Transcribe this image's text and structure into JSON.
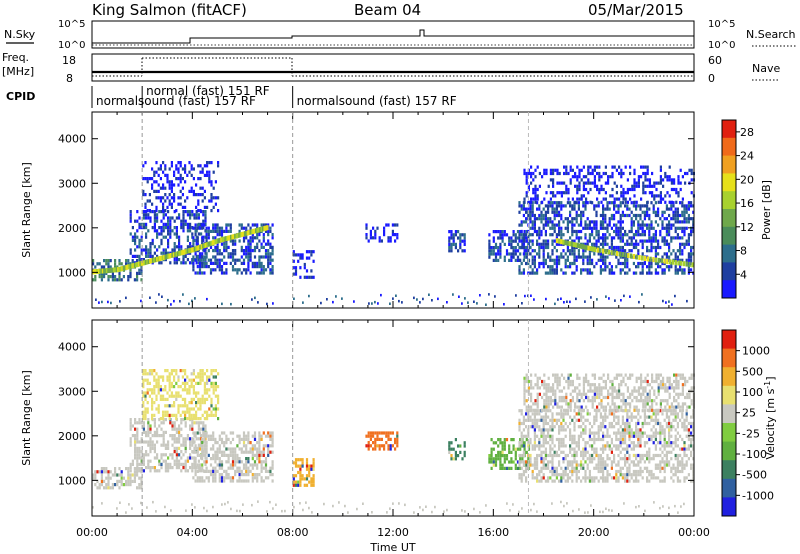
{
  "header": {
    "title": "King Salmon (fitACF)",
    "beam": "Beam 04",
    "date": "05/Mar/2015"
  },
  "strip_labels": {
    "nsky": "N.Sky",
    "nsearch": "N.Search",
    "freq_top": "Freq.",
    "freq_unit": "[MHz]",
    "nave": "Nave",
    "cpid": "CPID",
    "nsky_ticks": [
      "10^5",
      "10^0"
    ],
    "nsearch_ticks": [
      "10^5",
      "10^0"
    ],
    "freq_ticks": [
      "18",
      "8"
    ],
    "nave_ticks": [
      "60",
      "0"
    ]
  },
  "cpid_segments": [
    {
      "label": "normalsound (fast) 157 RF",
      "start_hr": 0,
      "end_hr": 8.0
    },
    {
      "label": "normal (fast) 151 RF",
      "start_hr": 2.0,
      "end_hr": 7.35
    },
    {
      "label": "normalsound (fast) 157 RF",
      "start_hr": 8.0,
      "end_hr": 24
    }
  ],
  "colors": {
    "power": [
      "#1a1aff",
      "#1f3fa0",
      "#2d6e8c",
      "#4a8c5a",
      "#6fa84b",
      "#a8d12e",
      "#e6e01a",
      "#f0a020",
      "#f06a1a",
      "#e02010"
    ],
    "velocity": [
      "#2020e0",
      "#3060a0",
      "#3c8060",
      "#60b040",
      "#80cc40",
      "#c8c8c0",
      "#e8e070",
      "#f0b030",
      "#f07020",
      "#e02010"
    ]
  },
  "chart_data": [
    {
      "type": "heatmap",
      "name": "power",
      "xlabel": "",
      "ylabel": "Slant Range [km]",
      "xlim": [
        0,
        24
      ],
      "ylim": [
        200,
        4600
      ],
      "yticks": [
        1000,
        2000,
        3000,
        4000
      ],
      "colorbar_label": "Power [dB]",
      "colorbar_ticks": [
        4,
        8,
        12,
        16,
        20,
        24,
        28
      ],
      "colorbar_range": [
        0,
        30
      ],
      "echo_regions": [
        {
          "t0": 0,
          "t1": 2.0,
          "r0": 850,
          "r1": 1300,
          "level": 2
        },
        {
          "t0": 1.5,
          "t1": 4.5,
          "r0": 1200,
          "r1": 2400,
          "level": 1
        },
        {
          "t0": 2.0,
          "t1": 5.0,
          "r0": 2400,
          "r1": 3500,
          "level": 0
        },
        {
          "t0": 4.0,
          "t1": 7.2,
          "r0": 1000,
          "r1": 2100,
          "level": 1
        },
        {
          "t0": 8.0,
          "t1": 8.8,
          "r0": 900,
          "r1": 1500,
          "level": 0
        },
        {
          "t0": 10.9,
          "t1": 12.2,
          "r0": 1700,
          "r1": 2100,
          "level": 0
        },
        {
          "t0": 14.2,
          "t1": 14.9,
          "r0": 1500,
          "r1": 1950,
          "level": 1
        },
        {
          "t0": 15.8,
          "t1": 17.4,
          "r0": 1300,
          "r1": 1950,
          "level": 1
        },
        {
          "t0": 17.0,
          "t1": 24,
          "r0": 1000,
          "r1": 2600,
          "level": 1
        },
        {
          "t0": 17.2,
          "t1": 24,
          "r0": 2600,
          "r1": 3400,
          "level": 0
        }
      ],
      "bright_band": [
        {
          "t": 0.0,
          "r": 1000
        },
        {
          "t": 1.0,
          "r": 1050
        },
        {
          "t": 2.0,
          "r": 1200
        },
        {
          "t": 3.0,
          "r": 1350
        },
        {
          "t": 4.0,
          "r": 1500
        },
        {
          "t": 5.0,
          "r": 1700
        },
        {
          "t": 6.0,
          "r": 1850
        },
        {
          "t": 7.0,
          "r": 2000
        }
      ],
      "bright_band2": [
        {
          "t": 18.5,
          "r": 1700
        },
        {
          "t": 20.0,
          "r": 1500
        },
        {
          "t": 22.0,
          "r": 1300
        },
        {
          "t": 24.0,
          "r": 1150
        }
      ]
    },
    {
      "type": "heatmap",
      "name": "velocity",
      "xlabel": "Time UT",
      "ylabel": "Slant Range [km]",
      "xlim": [
        0,
        24
      ],
      "ylim": [
        200,
        4600
      ],
      "yticks": [
        1000,
        2000,
        3000,
        4000
      ],
      "xticks": [
        "00:00",
        "04:00",
        "08:00",
        "12:00",
        "16:00",
        "20:00",
        "00:00"
      ],
      "colorbar_label": "Velocity [m s^-1]",
      "colorbar_ticks": [
        "1000",
        "500",
        "100",
        "25",
        "-25",
        "-100",
        "-500",
        "-1000"
      ],
      "echo_regions": [
        {
          "t0": 0,
          "t1": 2.0,
          "r0": 850,
          "r1": 1300,
          "level": 5
        },
        {
          "t0": 1.5,
          "t1": 4.5,
          "r0": 1200,
          "r1": 2400,
          "level": 5
        },
        {
          "t0": 2.0,
          "t1": 5.0,
          "r0": 2400,
          "r1": 3500,
          "level": 6
        },
        {
          "t0": 4.0,
          "t1": 7.2,
          "r0": 1000,
          "r1": 2100,
          "level": 5
        },
        {
          "t0": 8.0,
          "t1": 8.8,
          "r0": 900,
          "r1": 1500,
          "level": 7
        },
        {
          "t0": 10.9,
          "t1": 12.2,
          "r0": 1700,
          "r1": 2100,
          "level": 8
        },
        {
          "t0": 14.2,
          "t1": 14.9,
          "r0": 1500,
          "r1": 1950,
          "level": 2
        },
        {
          "t0": 15.8,
          "t1": 17.4,
          "r0": 1300,
          "r1": 1950,
          "level": 3
        },
        {
          "t0": 17.0,
          "t1": 24,
          "r0": 1000,
          "r1": 2600,
          "level": 5
        },
        {
          "t0": 17.2,
          "t1": 24,
          "r0": 2600,
          "r1": 3400,
          "level": 5
        }
      ]
    }
  ]
}
